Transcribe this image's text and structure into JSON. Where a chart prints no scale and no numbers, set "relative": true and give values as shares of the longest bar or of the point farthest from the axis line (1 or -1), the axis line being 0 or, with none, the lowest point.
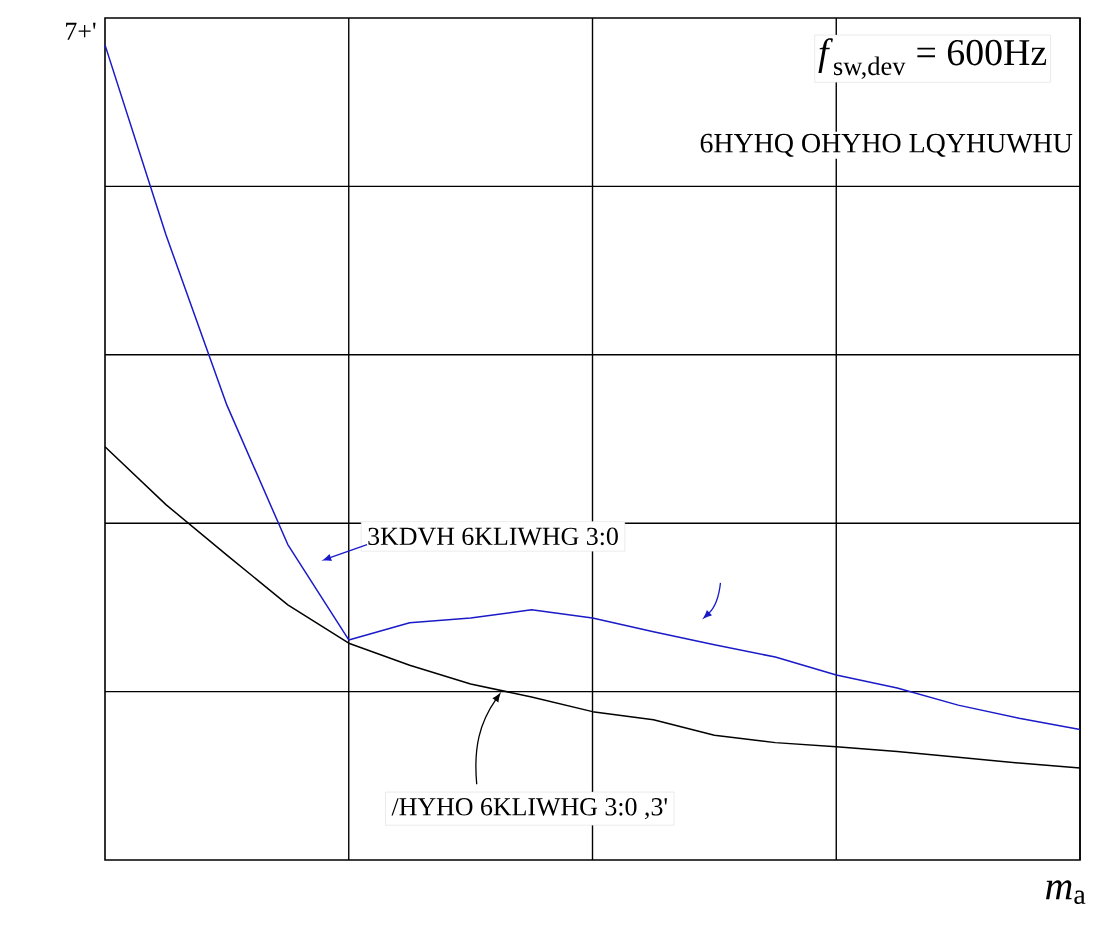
{
  "chart_data": {
    "type": "line",
    "relative": true,
    "grid": true,
    "ylabel": "7+'",
    "xlabel": "*m*$_{a}$",
    "annotations": [
      "*f*$_{sw,dev}$ = 600Hz",
      "6HYHQ OHYHO LQYHUWHU"
    ],
    "categories": [
      null,
      null,
      null,
      null,
      null,
      null,
      null,
      null,
      null,
      null,
      null,
      null,
      null,
      null,
      null,
      null,
      null
    ],
    "series": [
      {
        "name": "3KDVH 6KLIWHG 3:0",
        "color": "#1a1ac8",
        "values": [
          1,
          0.767,
          0.558,
          0.387,
          0.27,
          0.291,
          0.297,
          0.307,
          0.297,
          0.28,
          0.264,
          0.249,
          0.227,
          0.211,
          0.19,
          0.174,
          0.16
        ]
      },
      {
        "name": "/HYHO 6KLIWHG 3:0 ,3'",
        "color": "#000000",
        "values": [
          0.507,
          0.436,
          0.374,
          0.313,
          0.266,
          0.239,
          0.216,
          0.2,
          0.182,
          0.172,
          0.153,
          0.144,
          0.139,
          0.133,
          0.126,
          0.119,
          0.113
        ]
      }
    ]
  }
}
